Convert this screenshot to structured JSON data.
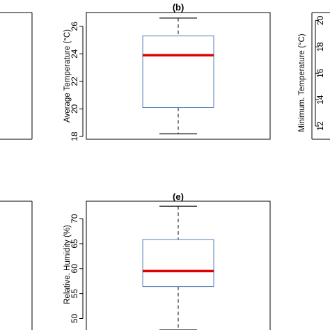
{
  "chart_data": [
    {
      "panel": "a",
      "type": "box",
      "title": "",
      "ylabel": "",
      "visible": "partial",
      "yticks": [],
      "box": null
    },
    {
      "panel": "b",
      "type": "box",
      "title": "(b)",
      "ylabel": "Average Temperature (°C)",
      "ylim": [
        17.8,
        27.0
      ],
      "yticks": [
        18,
        20,
        22,
        24,
        26
      ],
      "box": {
        "min": 18.2,
        "q1": 20.1,
        "median": 23.9,
        "q3": 25.3,
        "max": 26.6
      },
      "colors": {
        "box": "#4f81bd",
        "median": "#e00000",
        "whisker": "#000000"
      }
    },
    {
      "panel": "c",
      "type": "box",
      "title": "",
      "ylabel": "Minimum. Temperature (°C)",
      "visible": "partial",
      "yticks": [
        12,
        14,
        16,
        18,
        20
      ],
      "box": null
    },
    {
      "panel": "d",
      "type": "box",
      "title": "",
      "ylabel": "",
      "visible": "partial",
      "yticks": [],
      "box": null
    },
    {
      "panel": "e",
      "type": "box",
      "title": "(e)",
      "ylabel": "Relative. Humidity (%)",
      "ylim": [
        47.0,
        73.5
      ],
      "yticks": [
        50,
        55,
        60,
        65,
        70
      ],
      "box": {
        "min": 47.7,
        "q1": 56.4,
        "median": 59.5,
        "q3": 65.8,
        "max": 72.5
      },
      "colors": {
        "box": "#4f81bd",
        "median": "#e00000",
        "whisker": "#000000"
      }
    }
  ]
}
